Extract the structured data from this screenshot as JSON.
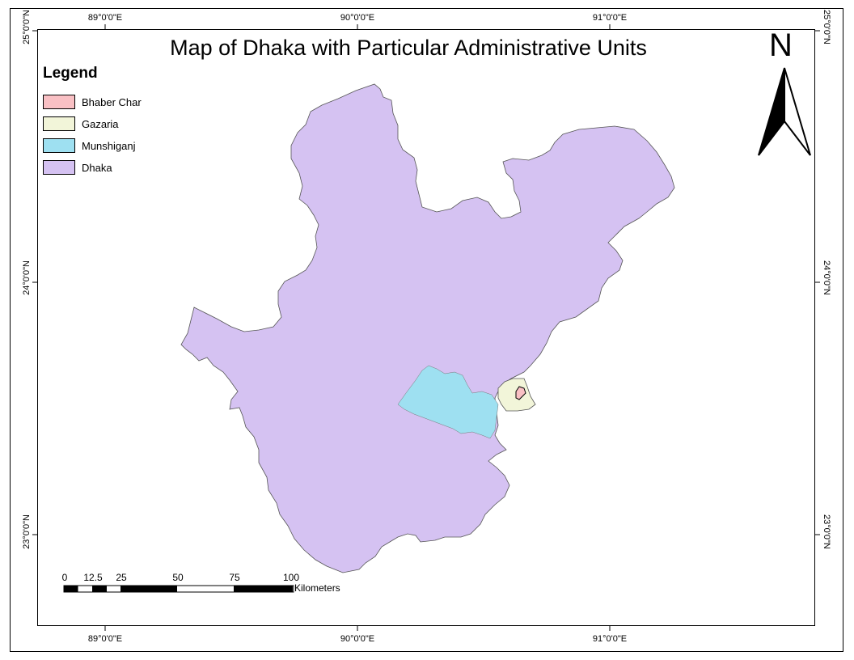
{
  "title": "Map of Dhaka with Particular Administrative Units",
  "legend": {
    "title": "Legend",
    "items": [
      {
        "label": "Bhaber Char",
        "color": "#f9c0c4"
      },
      {
        "label": "Gazaria",
        "color": "#f2f5d9"
      },
      {
        "label": "Munshiganj",
        "color": "#9ee0f1"
      },
      {
        "label": "Dhaka",
        "color": "#d5c2f2"
      }
    ]
  },
  "graticule": {
    "longitudes": [
      "89°0'0\"E",
      "90°0'0\"E",
      "91°0'0\"E"
    ],
    "latitudes": [
      "25°0'0\"N",
      "24°0'0\"N",
      "23°0'0\"N"
    ]
  },
  "scale_bar": {
    "labels": [
      "0",
      "12.5",
      "25",
      "50",
      "75",
      "100"
    ],
    "unit": "Kilometers"
  },
  "north_arrow": {
    "label": "N"
  }
}
